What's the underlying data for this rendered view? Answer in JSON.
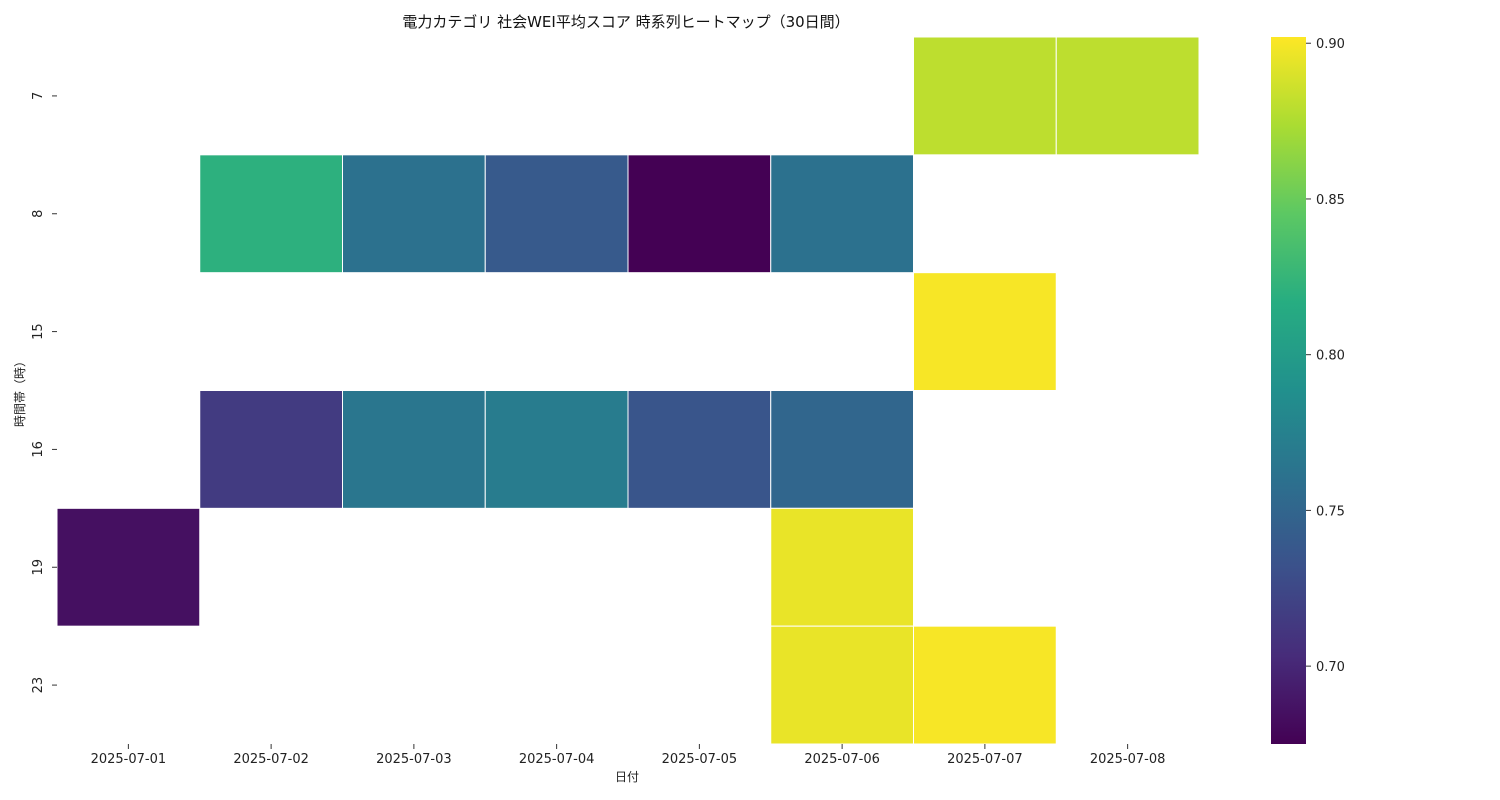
{
  "chart_data": {
    "type": "heatmap",
    "title": "電力カテゴリ 社会WEI平均スコア 時系列ヒートマップ（30日間）",
    "xlabel": "日付",
    "ylabel": "時間帯（時）",
    "x_categories": [
      "2025-07-01",
      "2025-07-02",
      "2025-07-03",
      "2025-07-04",
      "2025-07-05",
      "2025-07-06",
      "2025-07-07",
      "2025-07-08"
    ],
    "y_categories": [
      "7",
      "8",
      "15",
      "16",
      "19",
      "23"
    ],
    "values": [
      [
        null,
        null,
        null,
        null,
        null,
        null,
        0.88,
        0.88
      ],
      [
        null,
        0.82,
        0.76,
        0.74,
        0.675,
        0.76,
        null,
        null
      ],
      [
        null,
        null,
        null,
        null,
        null,
        null,
        0.9,
        null
      ],
      [
        null,
        0.715,
        0.765,
        0.77,
        0.735,
        0.75,
        null,
        null
      ],
      [
        0.685,
        null,
        null,
        null,
        null,
        0.895,
        null,
        null
      ],
      [
        null,
        null,
        null,
        null,
        null,
        0.895,
        0.9,
        null
      ]
    ],
    "colormap": "viridis",
    "vmin": 0.675,
    "vmax": 0.902,
    "colorbar_ticks": [
      "0.70",
      "0.75",
      "0.80",
      "0.85",
      "0.90"
    ],
    "cell_border_color": "#ffffff",
    "grid": false
  }
}
